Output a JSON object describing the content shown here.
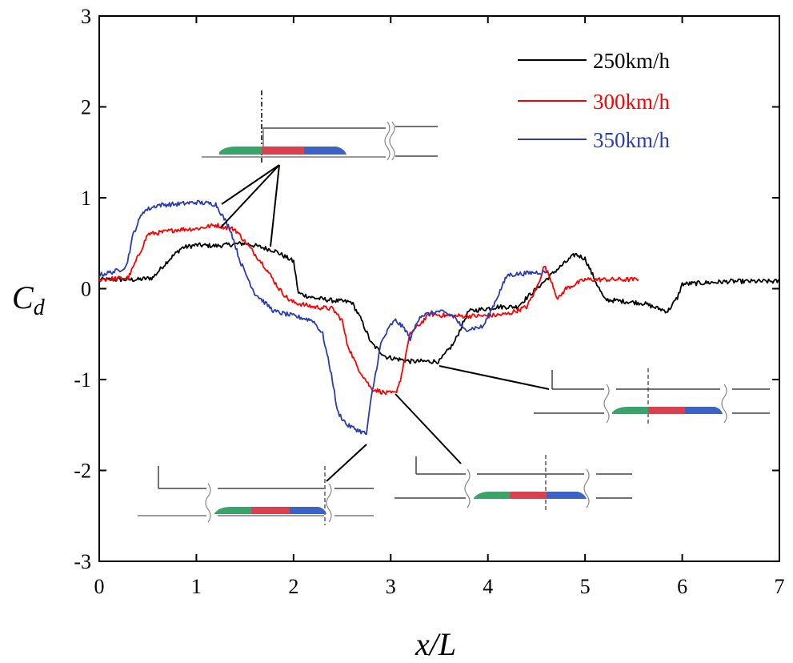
{
  "chart_data": {
    "type": "line",
    "title": "",
    "xlabel": "x/L",
    "ylabel_main": "C",
    "ylabel_sub": "d",
    "xlim": [
      0,
      7
    ],
    "ylim": [
      -3,
      3
    ],
    "xticks": [
      0,
      1,
      2,
      3,
      4,
      5,
      6,
      7
    ],
    "yticks": [
      -3,
      -2,
      -1,
      0,
      1,
      2,
      3
    ],
    "xtick_labels": [
      "0",
      "1",
      "2",
      "3",
      "4",
      "5",
      "6",
      "7"
    ],
    "ytick_labels": [
      "-3",
      "-2",
      "-1",
      "0",
      "1",
      "2",
      "3"
    ],
    "legend_position": "top-right",
    "series": [
      {
        "name": "250km/h",
        "color": "#000000",
        "x": [
          0,
          0.4,
          0.55,
          0.7,
          0.85,
          1.0,
          1.2,
          1.5,
          1.8,
          2.0,
          2.05,
          2.2,
          2.4,
          2.6,
          2.7,
          2.8,
          2.95,
          3.2,
          3.5,
          3.65,
          3.8,
          4.1,
          4.3,
          4.5,
          4.7,
          4.9,
          5.0,
          5.1,
          5.2,
          5.4,
          5.6,
          5.7,
          5.85,
          5.95,
          6.0,
          6.5,
          7.0
        ],
        "y": [
          0.1,
          0.1,
          0.12,
          0.3,
          0.45,
          0.48,
          0.47,
          0.5,
          0.42,
          0.3,
          -0.05,
          -0.1,
          -0.13,
          -0.15,
          -0.35,
          -0.6,
          -0.75,
          -0.8,
          -0.8,
          -0.6,
          -0.25,
          -0.2,
          -0.2,
          0.0,
          0.2,
          0.38,
          0.33,
          0.1,
          -0.12,
          -0.14,
          -0.16,
          -0.2,
          -0.25,
          -0.1,
          0.05,
          0.08,
          0.08
        ]
      },
      {
        "name": "300km/h",
        "color": "#ff0000",
        "x": [
          0,
          0.3,
          0.42,
          0.5,
          0.65,
          0.8,
          1.0,
          1.2,
          1.4,
          1.55,
          1.7,
          1.85,
          1.95,
          2.0,
          2.2,
          2.4,
          2.5,
          2.55,
          2.65,
          2.8,
          2.95,
          3.05,
          3.1,
          3.2,
          3.4,
          3.6,
          3.8,
          4.0,
          4.2,
          4.4,
          4.5,
          4.58,
          4.65,
          4.72,
          4.8,
          5.0,
          5.55
        ],
        "y": [
          0.1,
          0.12,
          0.4,
          0.6,
          0.62,
          0.65,
          0.66,
          0.7,
          0.65,
          0.45,
          0.25,
          0.0,
          -0.12,
          -0.15,
          -0.2,
          -0.22,
          -0.35,
          -0.6,
          -0.85,
          -1.1,
          -1.15,
          -1.15,
          -1.0,
          -0.5,
          -0.28,
          -0.3,
          -0.3,
          -0.3,
          -0.28,
          -0.2,
          0.0,
          0.25,
          0.1,
          -0.12,
          0.0,
          0.1,
          0.1
        ]
      },
      {
        "name": "350km/h",
        "color": "#2a3cb0",
        "x": [
          0,
          0.2,
          0.28,
          0.35,
          0.45,
          0.6,
          0.8,
          1.0,
          1.2,
          1.35,
          1.45,
          1.6,
          1.7,
          1.8,
          2.0,
          2.2,
          2.3,
          2.4,
          2.45,
          2.55,
          2.65,
          2.75,
          2.8,
          2.9,
          3.0,
          3.05,
          3.15,
          3.2,
          3.3,
          3.5,
          3.65,
          3.75,
          3.95,
          4.05,
          4.2,
          4.5,
          4.6
        ],
        "y": [
          0.15,
          0.2,
          0.25,
          0.6,
          0.85,
          0.92,
          0.93,
          0.95,
          0.93,
          0.65,
          0.3,
          -0.05,
          -0.15,
          -0.25,
          -0.3,
          -0.35,
          -0.5,
          -1.0,
          -1.35,
          -1.5,
          -1.55,
          -1.6,
          -1.2,
          -0.6,
          -0.4,
          -0.35,
          -0.45,
          -0.55,
          -0.3,
          -0.25,
          -0.3,
          -0.45,
          -0.42,
          -0.2,
          0.15,
          0.18,
          0.18
        ]
      }
    ]
  }
}
